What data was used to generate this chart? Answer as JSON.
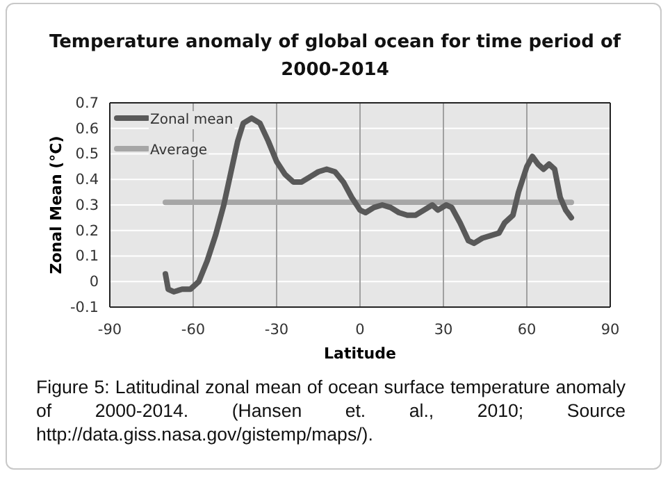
{
  "chart_data": {
    "type": "line",
    "title": "Temperature anomaly of global ocean for time period of 2000-2014",
    "xlabel": "Latitude",
    "ylabel": "Zonal Mean (°C)",
    "xlim": [
      -90,
      90
    ],
    "xticks": [
      -90,
      -60,
      -30,
      0,
      30,
      60,
      90
    ],
    "ylim": [
      -0.1,
      0.7
    ],
    "yticks": [
      -0.1,
      0,
      0.1,
      0.2,
      0.3,
      0.4,
      0.5,
      0.6,
      0.7
    ],
    "grid": true,
    "legend": "top left",
    "marker": "none",
    "line_style": "solid",
    "series": [
      {
        "name": "Zonal mean",
        "color": "#595959",
        "x": [
          -70,
          -69,
          -67,
          -64,
          -61,
          -58,
          -55,
          -52,
          -49,
          -46,
          -44,
          -42,
          -39,
          -36,
          -33,
          -30,
          -27,
          -24,
          -21,
          -18,
          -15,
          -12,
          -9,
          -6,
          -3,
          0,
          2,
          5,
          8,
          11,
          14,
          17,
          20,
          23,
          26,
          28,
          31,
          33,
          36,
          39,
          41,
          44,
          47,
          50,
          52,
          55,
          57,
          60,
          62,
          64,
          66,
          68,
          70,
          72,
          74,
          76
        ],
        "values": [
          0.03,
          -0.03,
          -0.04,
          -0.03,
          -0.03,
          0.0,
          0.08,
          0.18,
          0.3,
          0.45,
          0.55,
          0.62,
          0.64,
          0.62,
          0.55,
          0.47,
          0.42,
          0.39,
          0.39,
          0.41,
          0.43,
          0.44,
          0.43,
          0.39,
          0.33,
          0.28,
          0.27,
          0.29,
          0.3,
          0.29,
          0.27,
          0.26,
          0.26,
          0.28,
          0.3,
          0.28,
          0.3,
          0.29,
          0.23,
          0.16,
          0.15,
          0.17,
          0.18,
          0.19,
          0.23,
          0.26,
          0.35,
          0.45,
          0.49,
          0.46,
          0.44,
          0.46,
          0.44,
          0.33,
          0.28,
          0.25
        ]
      },
      {
        "name": "Average",
        "color": "#a6a6a6",
        "x": [
          -70,
          76
        ],
        "values": [
          0.31,
          0.31
        ]
      }
    ],
    "annotations": [
      "Figure 5: Latitudinal zonal mean of ocean surface temperature anomaly of 2000-2014. (Hansen et. al., 2010; Source http://data.giss.nasa.gov/gistemp/maps/)."
    ]
  }
}
